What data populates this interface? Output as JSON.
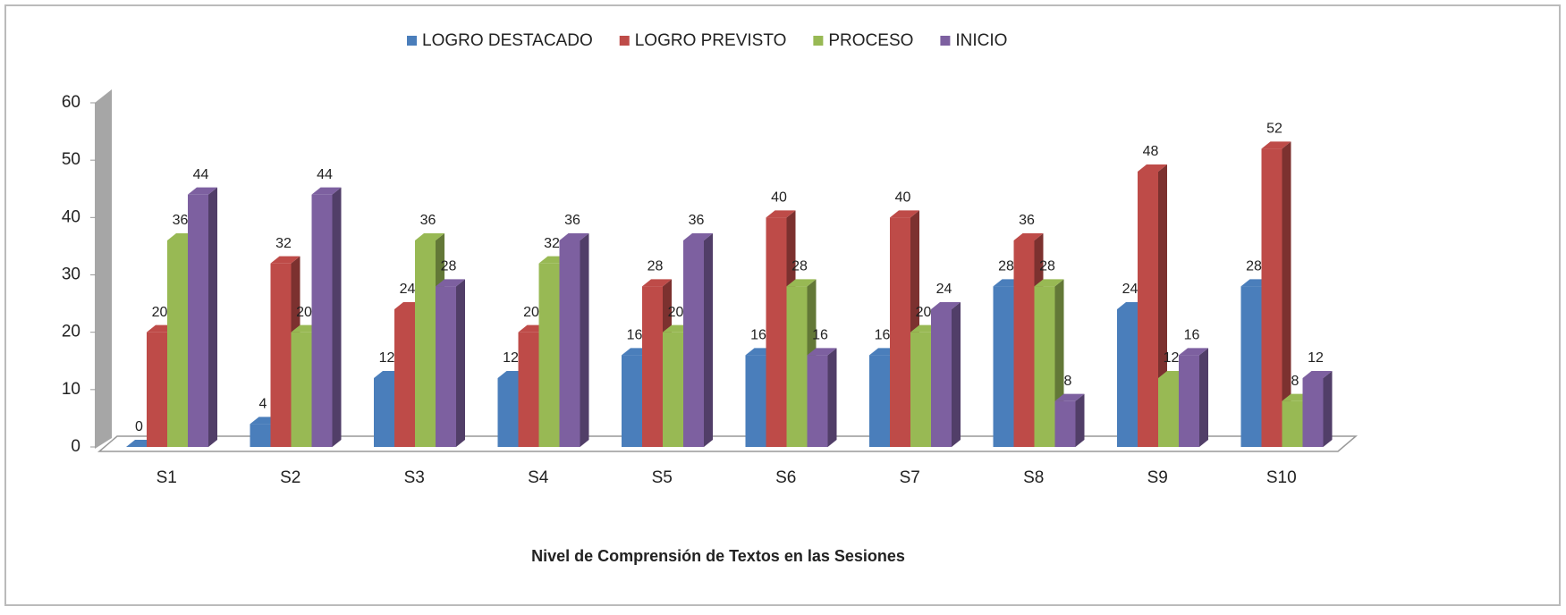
{
  "chart_data": {
    "type": "bar3d",
    "xlabel": "Nivel de Comprensión de Textos en las Sesiones",
    "categories": [
      "S1",
      "S2",
      "S3",
      "S4",
      "S5",
      "S6",
      "S7",
      "S8",
      "S9",
      "S10"
    ],
    "series": [
      {
        "name": "LOGRO DESTACADO",
        "color": "#4a7ebb",
        "values": [
          0,
          4,
          12,
          12,
          16,
          16,
          16,
          28,
          24,
          28
        ]
      },
      {
        "name": "LOGRO PREVISTO",
        "color": "#be4b48",
        "values": [
          20,
          32,
          24,
          20,
          28,
          40,
          40,
          36,
          48,
          52
        ]
      },
      {
        "name": "PROCESO",
        "color": "#98b954",
        "values": [
          36,
          20,
          36,
          32,
          20,
          28,
          20,
          28,
          12,
          8
        ]
      },
      {
        "name": "INICIO",
        "color": "#7d60a0",
        "values": [
          44,
          44,
          28,
          36,
          36,
          16,
          24,
          8,
          16,
          12
        ]
      }
    ],
    "ylim": [
      0,
      60
    ],
    "yticks": [
      0,
      10,
      20,
      30,
      40,
      50,
      60
    ],
    "legend": "top"
  }
}
